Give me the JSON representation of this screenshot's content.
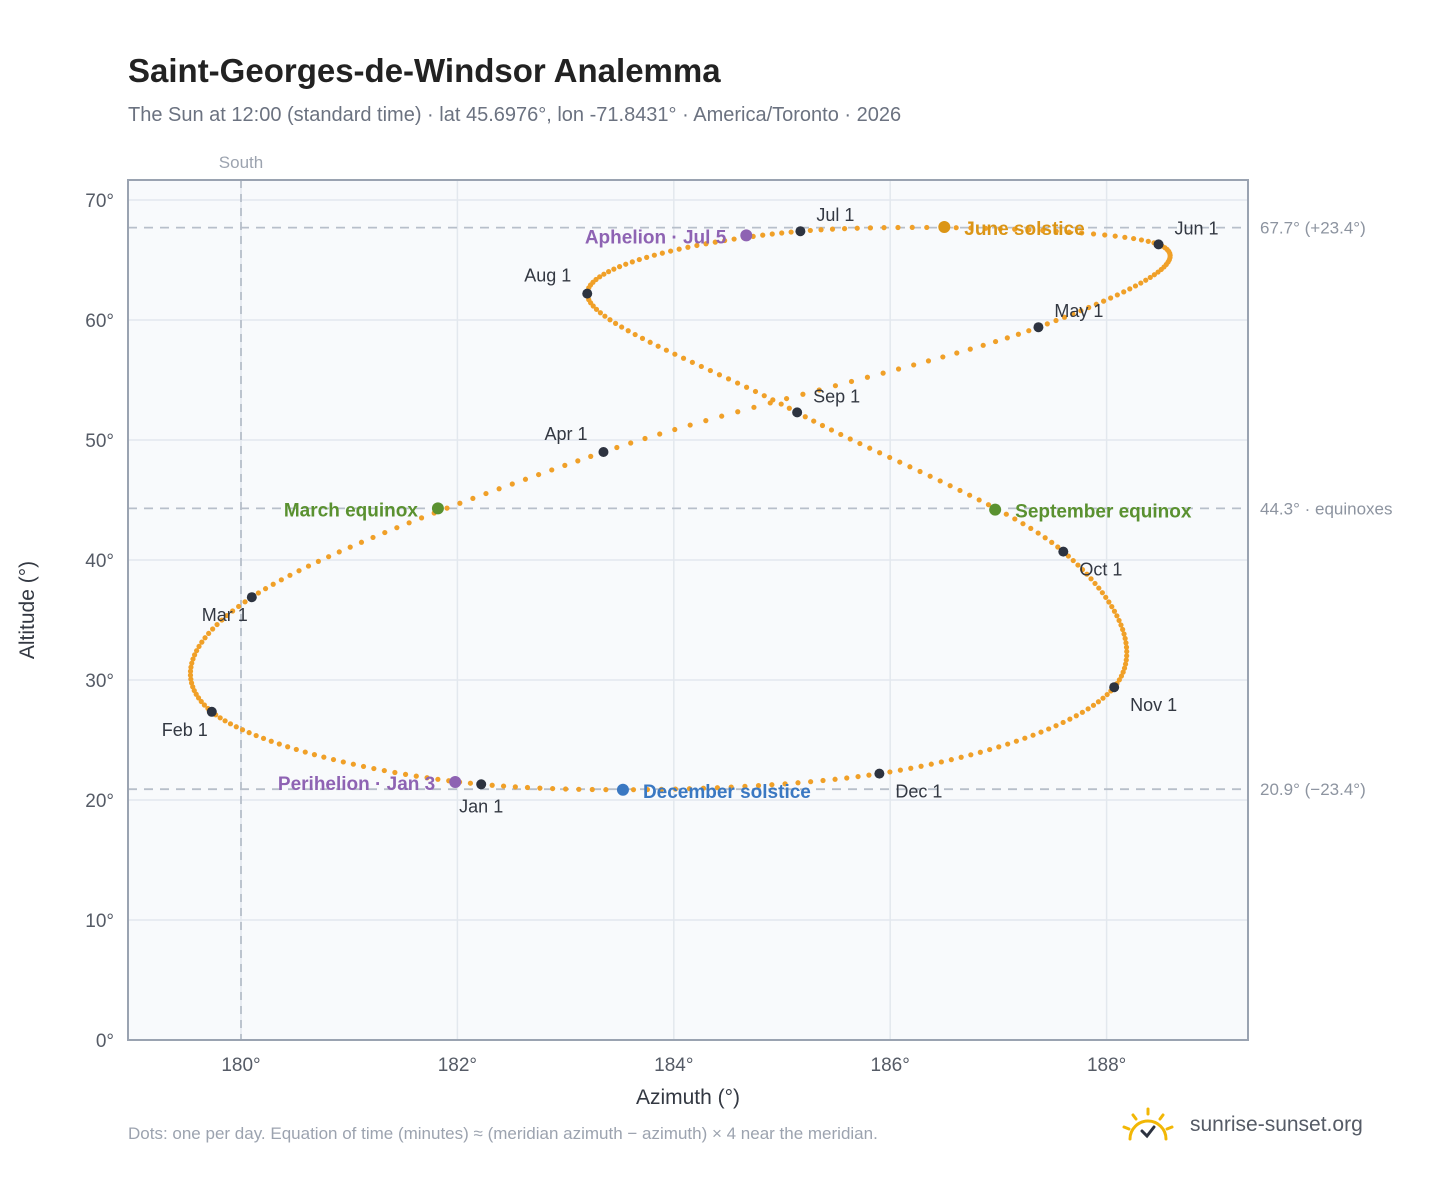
{
  "title": "Saint-Georges-de-Windsor Analemma",
  "subtitle": "The Sun at 12:00 (standard time) · lat 45.6976°, lon -71.8431° · America/Toronto · 2026",
  "footnote": "Dots: one per day. Equation of time (minutes) ≈ (meridian azimuth − azimuth) × 4 near the meridian.",
  "brand": {
    "name": "sunrise-sunset.org",
    "icon": "sun-logo-icon"
  },
  "colors": {
    "curve": "#f0a028",
    "month_marker": "#2d3340",
    "aphelion": "#8e63b3",
    "june_solstice": "#db9516",
    "equinox": "#5a9130",
    "december_solstice": "#3a78c2",
    "plot_bg": "#f8fafc",
    "grid": "#e3e8ee",
    "ref_line": "#b7bfca"
  },
  "chart_data": {
    "type": "scatter",
    "xlabel": "Azimuth (°)",
    "ylabel": "Altitude (°)",
    "xlim": [
      179,
      189.3
    ],
    "ylim": [
      0,
      71.5
    ],
    "xticks": [
      180,
      182,
      184,
      186,
      188
    ],
    "xtick_labels": [
      "180°",
      "182°",
      "184°",
      "186°",
      "188°"
    ],
    "yticks": [
      0,
      10,
      20,
      30,
      40,
      50,
      60,
      70
    ],
    "ytick_labels": [
      "0°",
      "10°",
      "20°",
      "30°",
      "40°",
      "50°",
      "60°",
      "70°"
    ],
    "grid": true,
    "south_line": {
      "x": 180,
      "label": "South"
    },
    "reference_lines": [
      {
        "y": 67.7,
        "label": "67.7° (+23.4°)"
      },
      {
        "y": 44.3,
        "label": "44.3° · equinoxes"
      },
      {
        "y": 20.9,
        "label": "20.9° (−23.4°)"
      }
    ],
    "curve_points": [
      {
        "doy": 1,
        "az": 182.22,
        "alt": 21.31
      },
      {
        "doy": 32,
        "az": 179.73,
        "alt": 27.35
      },
      {
        "doy": 60,
        "az": 180.1,
        "alt": 36.9
      },
      {
        "doy": 91,
        "az": 183.35,
        "alt": 49.0
      },
      {
        "doy": 121,
        "az": 187.37,
        "alt": 59.4
      },
      {
        "doy": 152,
        "az": 188.48,
        "alt": 66.3
      },
      {
        "doy": 182,
        "az": 185.17,
        "alt": 67.4
      },
      {
        "doy": 213,
        "az": 183.2,
        "alt": 62.2
      },
      {
        "doy": 244,
        "az": 185.14,
        "alt": 52.3
      },
      {
        "doy": 274,
        "az": 187.6,
        "alt": 40.7
      },
      {
        "doy": 305,
        "az": 188.07,
        "alt": 29.4
      },
      {
        "doy": 335,
        "az": 185.9,
        "alt": 22.2
      },
      {
        "doy": 366,
        "az": 182.22,
        "alt": 21.31
      }
    ],
    "month_markers": [
      {
        "label": "Jan 1",
        "az": 182.22,
        "alt": 21.31,
        "pos": "below"
      },
      {
        "label": "Feb 1",
        "az": 179.73,
        "alt": 27.35,
        "pos": "below-left"
      },
      {
        "label": "Mar 1",
        "az": 180.1,
        "alt": 36.9,
        "pos": "below-left"
      },
      {
        "label": "Apr 1",
        "az": 183.35,
        "alt": 49.0,
        "pos": "above-left"
      },
      {
        "label": "May 1",
        "az": 187.37,
        "alt": 59.4,
        "pos": "above-right"
      },
      {
        "label": "Jun 1",
        "az": 188.48,
        "alt": 66.3,
        "pos": "above-right"
      },
      {
        "label": "Jul 1",
        "az": 185.17,
        "alt": 67.4,
        "pos": "above-right"
      },
      {
        "label": "Aug 1",
        "az": 183.2,
        "alt": 62.2,
        "pos": "above-left"
      },
      {
        "label": "Sep 1",
        "az": 185.14,
        "alt": 52.3,
        "pos": "above-right"
      },
      {
        "label": "Oct 1",
        "az": 187.6,
        "alt": 40.7,
        "pos": "below-right"
      },
      {
        "label": "Nov 1",
        "az": 188.07,
        "alt": 29.4,
        "pos": "below-right"
      },
      {
        "label": "Dec 1",
        "az": 185.9,
        "alt": 22.2,
        "pos": "below-right"
      }
    ],
    "events": [
      {
        "label": "Perihelion · Jan 3",
        "az": 181.98,
        "alt": 21.5,
        "color_key": "aphelion",
        "side": "left"
      },
      {
        "label": "March equinox",
        "az": 181.82,
        "alt": 44.3,
        "color_key": "equinox",
        "side": "left"
      },
      {
        "label": "June solstice",
        "az": 186.5,
        "alt": 67.75,
        "color_key": "june_solstice",
        "side": "right"
      },
      {
        "label": "Aphelion · Jul 5",
        "az": 184.67,
        "alt": 67.05,
        "color_key": "aphelion",
        "side": "left"
      },
      {
        "label": "September equinox",
        "az": 186.97,
        "alt": 44.2,
        "color_key": "equinox",
        "side": "right"
      },
      {
        "label": "December solstice",
        "az": 183.53,
        "alt": 20.85,
        "color_key": "december_solstice",
        "side": "right"
      }
    ]
  }
}
